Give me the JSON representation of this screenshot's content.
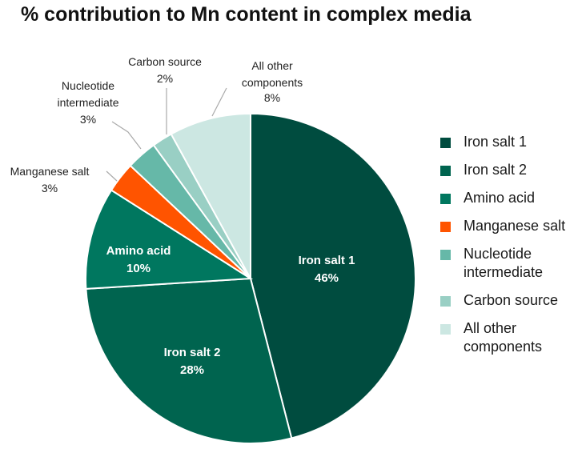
{
  "chart_data": {
    "type": "pie",
    "title": "% contribution to Mn content in complex media",
    "start_angle": "12 o'clock, clockwise",
    "legend_position": "right",
    "slices": [
      {
        "label": "Iron salt 1",
        "value": 46,
        "value_label": "46%",
        "color": "#004c3f",
        "label_position": "inside"
      },
      {
        "label": "Iron salt 2",
        "value": 28,
        "value_label": "28%",
        "color": "#00644f",
        "label_position": "inside"
      },
      {
        "label": "Amino acid",
        "value": 10,
        "value_label": "10%",
        "color": "#00775f",
        "label_position": "inside"
      },
      {
        "label": "Manganese salt",
        "value": 3,
        "value_label": "3%",
        "color": "#ff5400",
        "label_position": "outside"
      },
      {
        "label": "Nucleotide intermediate",
        "value": 3,
        "value_label": "3%",
        "color": "#66b8a8",
        "label_position": "outside"
      },
      {
        "label": "Carbon source",
        "value": 2,
        "value_label": "2%",
        "color": "#99cfc4",
        "label_position": "outside"
      },
      {
        "label": "All other components",
        "value": 8,
        "value_label": "8%",
        "color": "#cce7e2",
        "label_position": "outside"
      }
    ]
  }
}
